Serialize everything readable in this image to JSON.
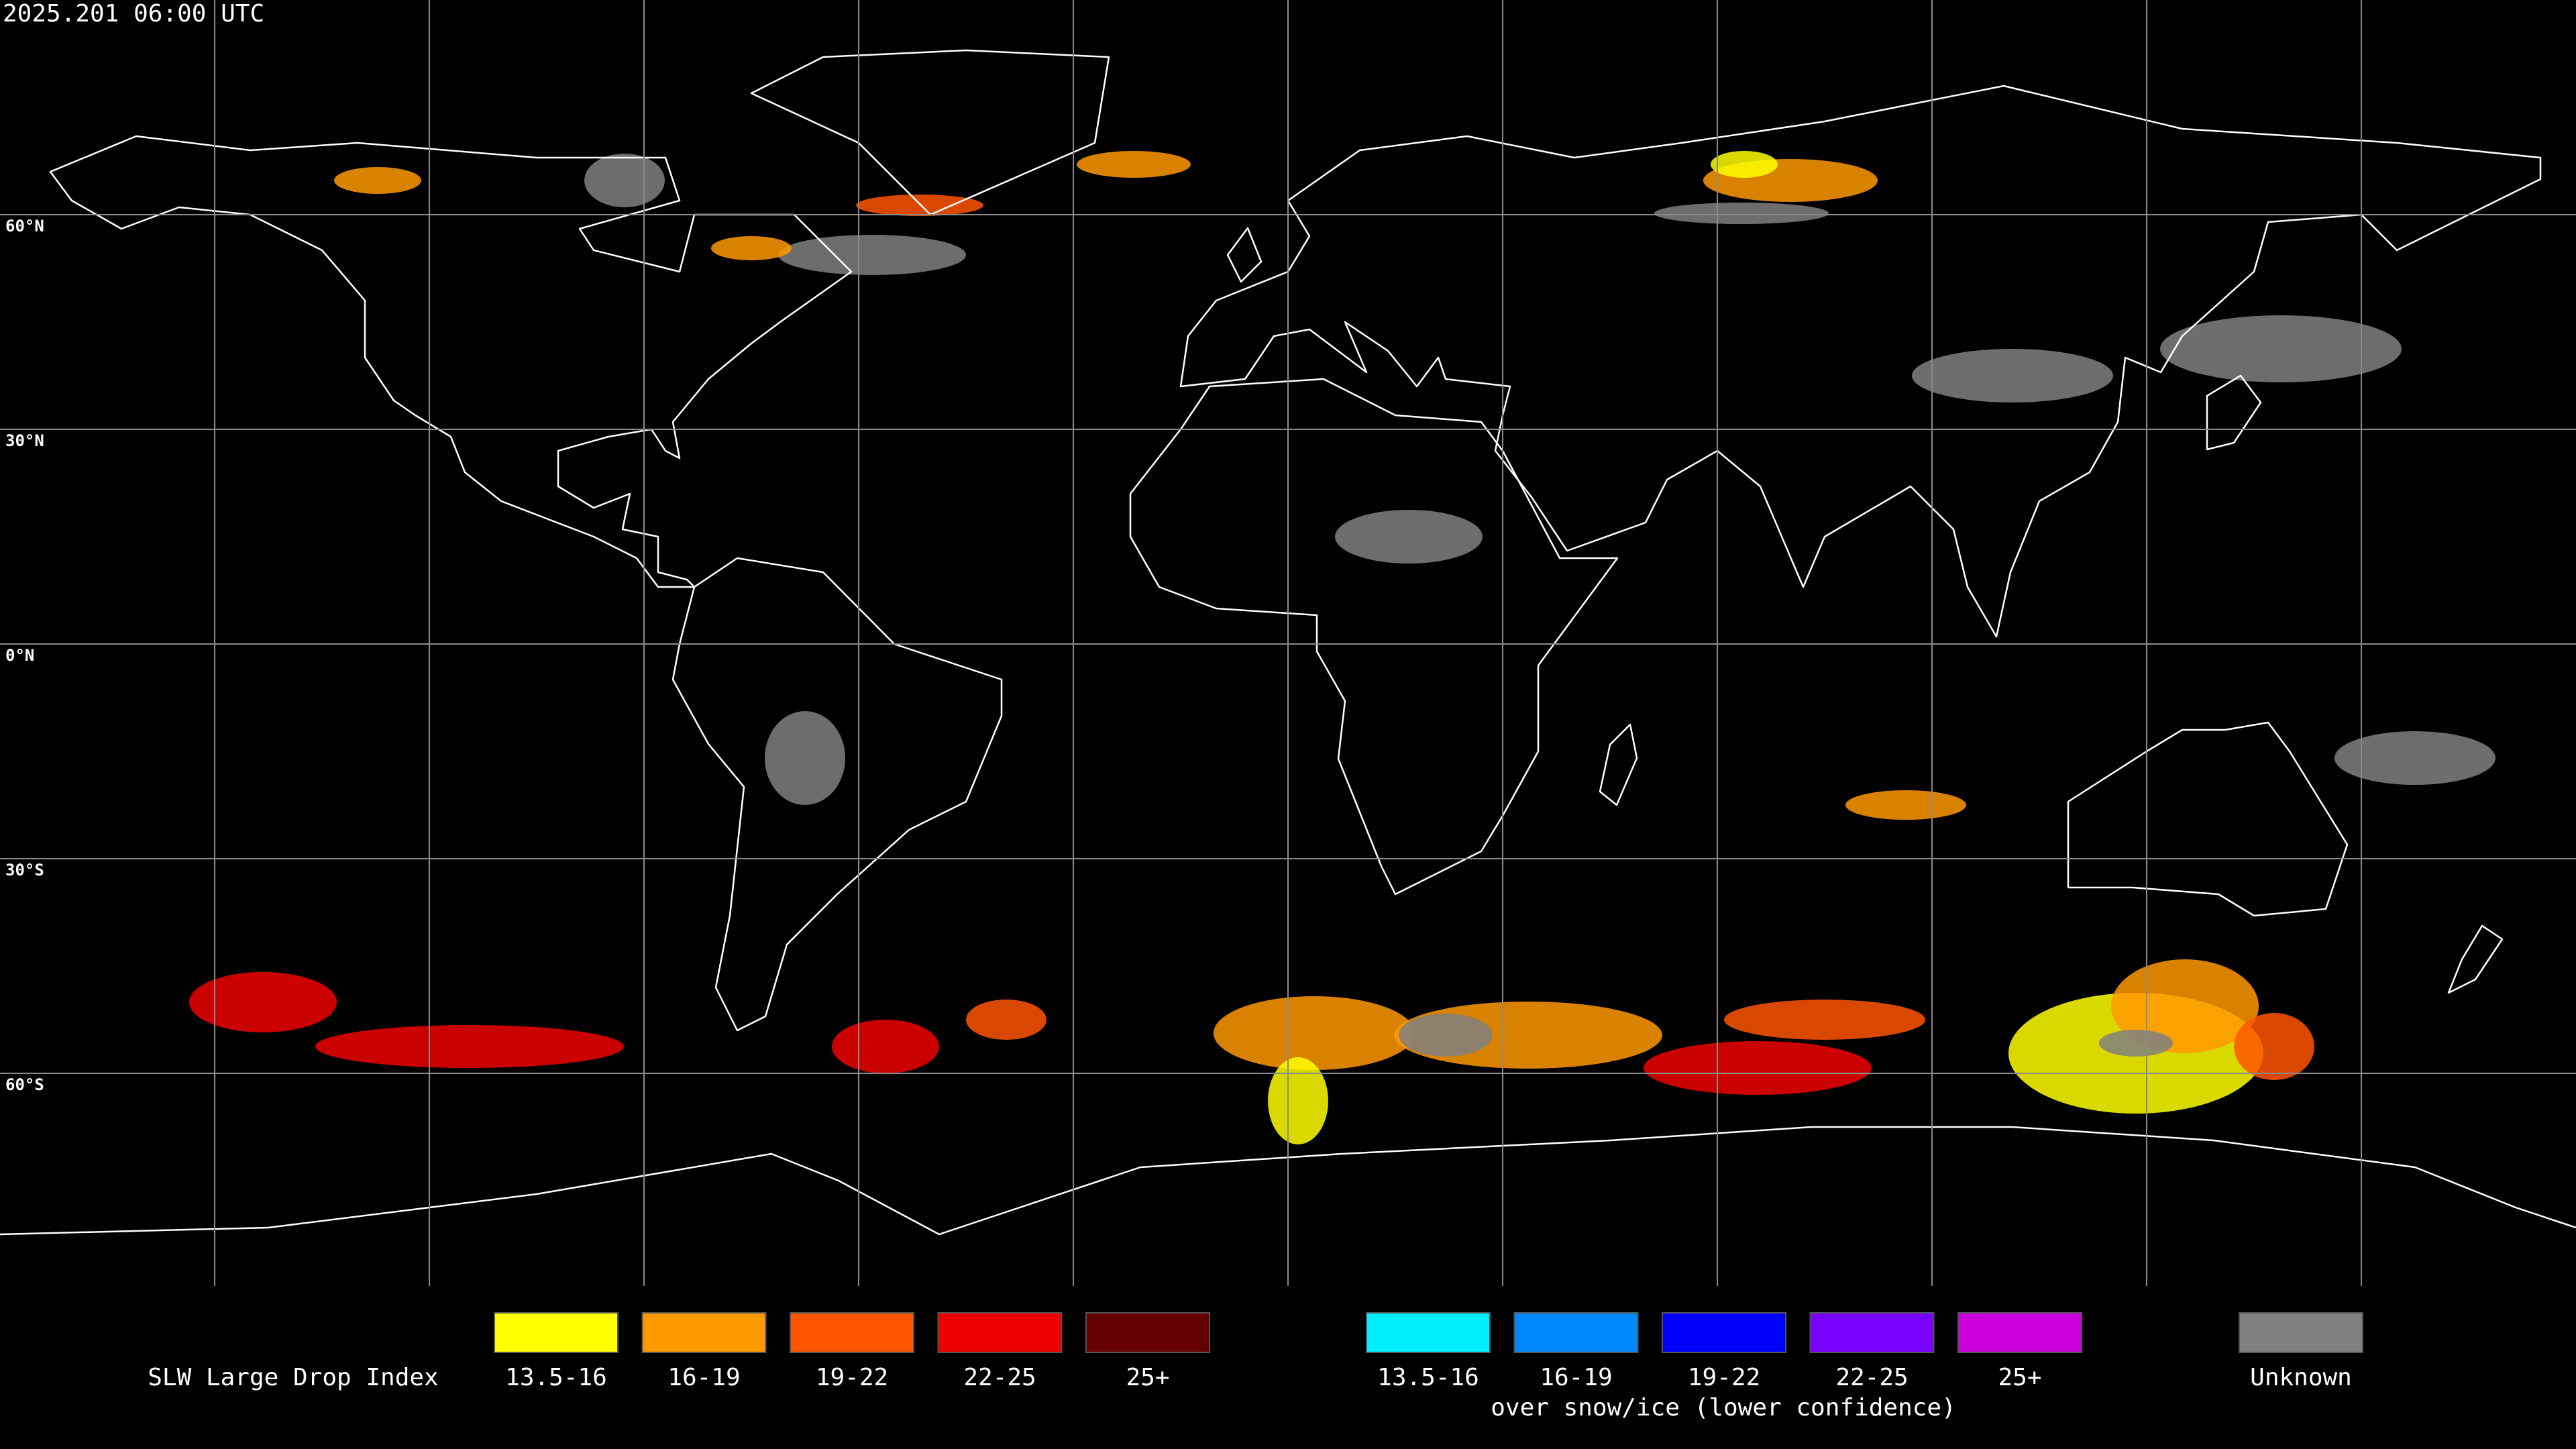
{
  "header": {
    "timestamp": "2025.201 06:00 UTC"
  },
  "grid": {
    "lat_labels": [
      "60°N",
      "30°N",
      "0°N",
      "30°S",
      "60°S"
    ]
  },
  "legend": {
    "title": "SLW Large Drop Index",
    "groups": [
      {
        "items": [
          {
            "label": "13.5-16",
            "color": "#ffff00"
          },
          {
            "label": "16-19",
            "color": "#ff9900"
          },
          {
            "label": "19-22",
            "color": "#ff5500"
          },
          {
            "label": "22-25",
            "color": "#ee0000"
          },
          {
            "label": "25+",
            "color": "#660000"
          }
        ]
      },
      {
        "caption": "over snow/ice (lower confidence)",
        "items": [
          {
            "label": "13.5-16",
            "color": "#00eeff"
          },
          {
            "label": "16-19",
            "color": "#0088ff"
          },
          {
            "label": "19-22",
            "color": "#0000ff"
          },
          {
            "label": "22-25",
            "color": "#7700ff"
          },
          {
            "label": "25+",
            "color": "#cc00dd"
          }
        ]
      }
    ],
    "unknown": {
      "label": "Unknown",
      "color": "#808080"
    }
  }
}
